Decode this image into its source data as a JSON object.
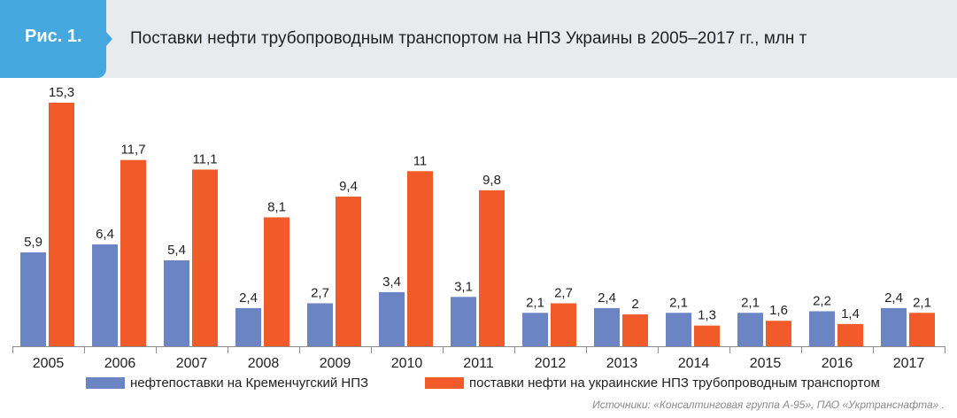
{
  "header": {
    "badge": "Рис. 1.",
    "title": "Поставки нефти трубопроводным транспортом на НПЗ Украины в 2005–2017 гг., млн т"
  },
  "colors": {
    "series1": "#6b84c4",
    "series2": "#f15a29",
    "badge": "#44a7dd",
    "header_bg": "#e8ebee"
  },
  "chart_data": {
    "type": "bar",
    "categories": [
      "2005",
      "2006",
      "2007",
      "2008",
      "2009",
      "2010",
      "2011",
      "2012",
      "2013",
      "2014",
      "2015",
      "2016",
      "2017"
    ],
    "series": [
      {
        "name": "нефтепоставки на Кременчугский НПЗ",
        "values": [
          5.9,
          6.4,
          5.4,
          2.4,
          2.7,
          3.4,
          3.1,
          2.1,
          2.4,
          2.1,
          2.1,
          2.2,
          2.4
        ],
        "labels": [
          "5,9",
          "6,4",
          "5,4",
          "2,4",
          "2,7",
          "3,4",
          "3,1",
          "2,1",
          "2,4",
          "2,1",
          "2,1",
          "2,2",
          "2,4"
        ]
      },
      {
        "name": "поставки нефти на украинские НПЗ трубопроводным транспортом",
        "values": [
          15.3,
          11.7,
          11.1,
          8.1,
          9.4,
          11,
          9.8,
          2.7,
          2,
          1.3,
          1.6,
          1.4,
          2.1
        ],
        "labels": [
          "15,3",
          "11,7",
          "11,1",
          "8,1",
          "9,4",
          "11",
          "9,8",
          "2,7",
          "2",
          "1,3",
          "1,6",
          "1,4",
          "2,1"
        ]
      }
    ],
    "ylim": [
      0,
      15.3
    ],
    "grid": false,
    "legend_position": "bottom"
  },
  "source": "Источники: «Консалтинговая группа А-95», ПАО «Укртранснафта» ."
}
